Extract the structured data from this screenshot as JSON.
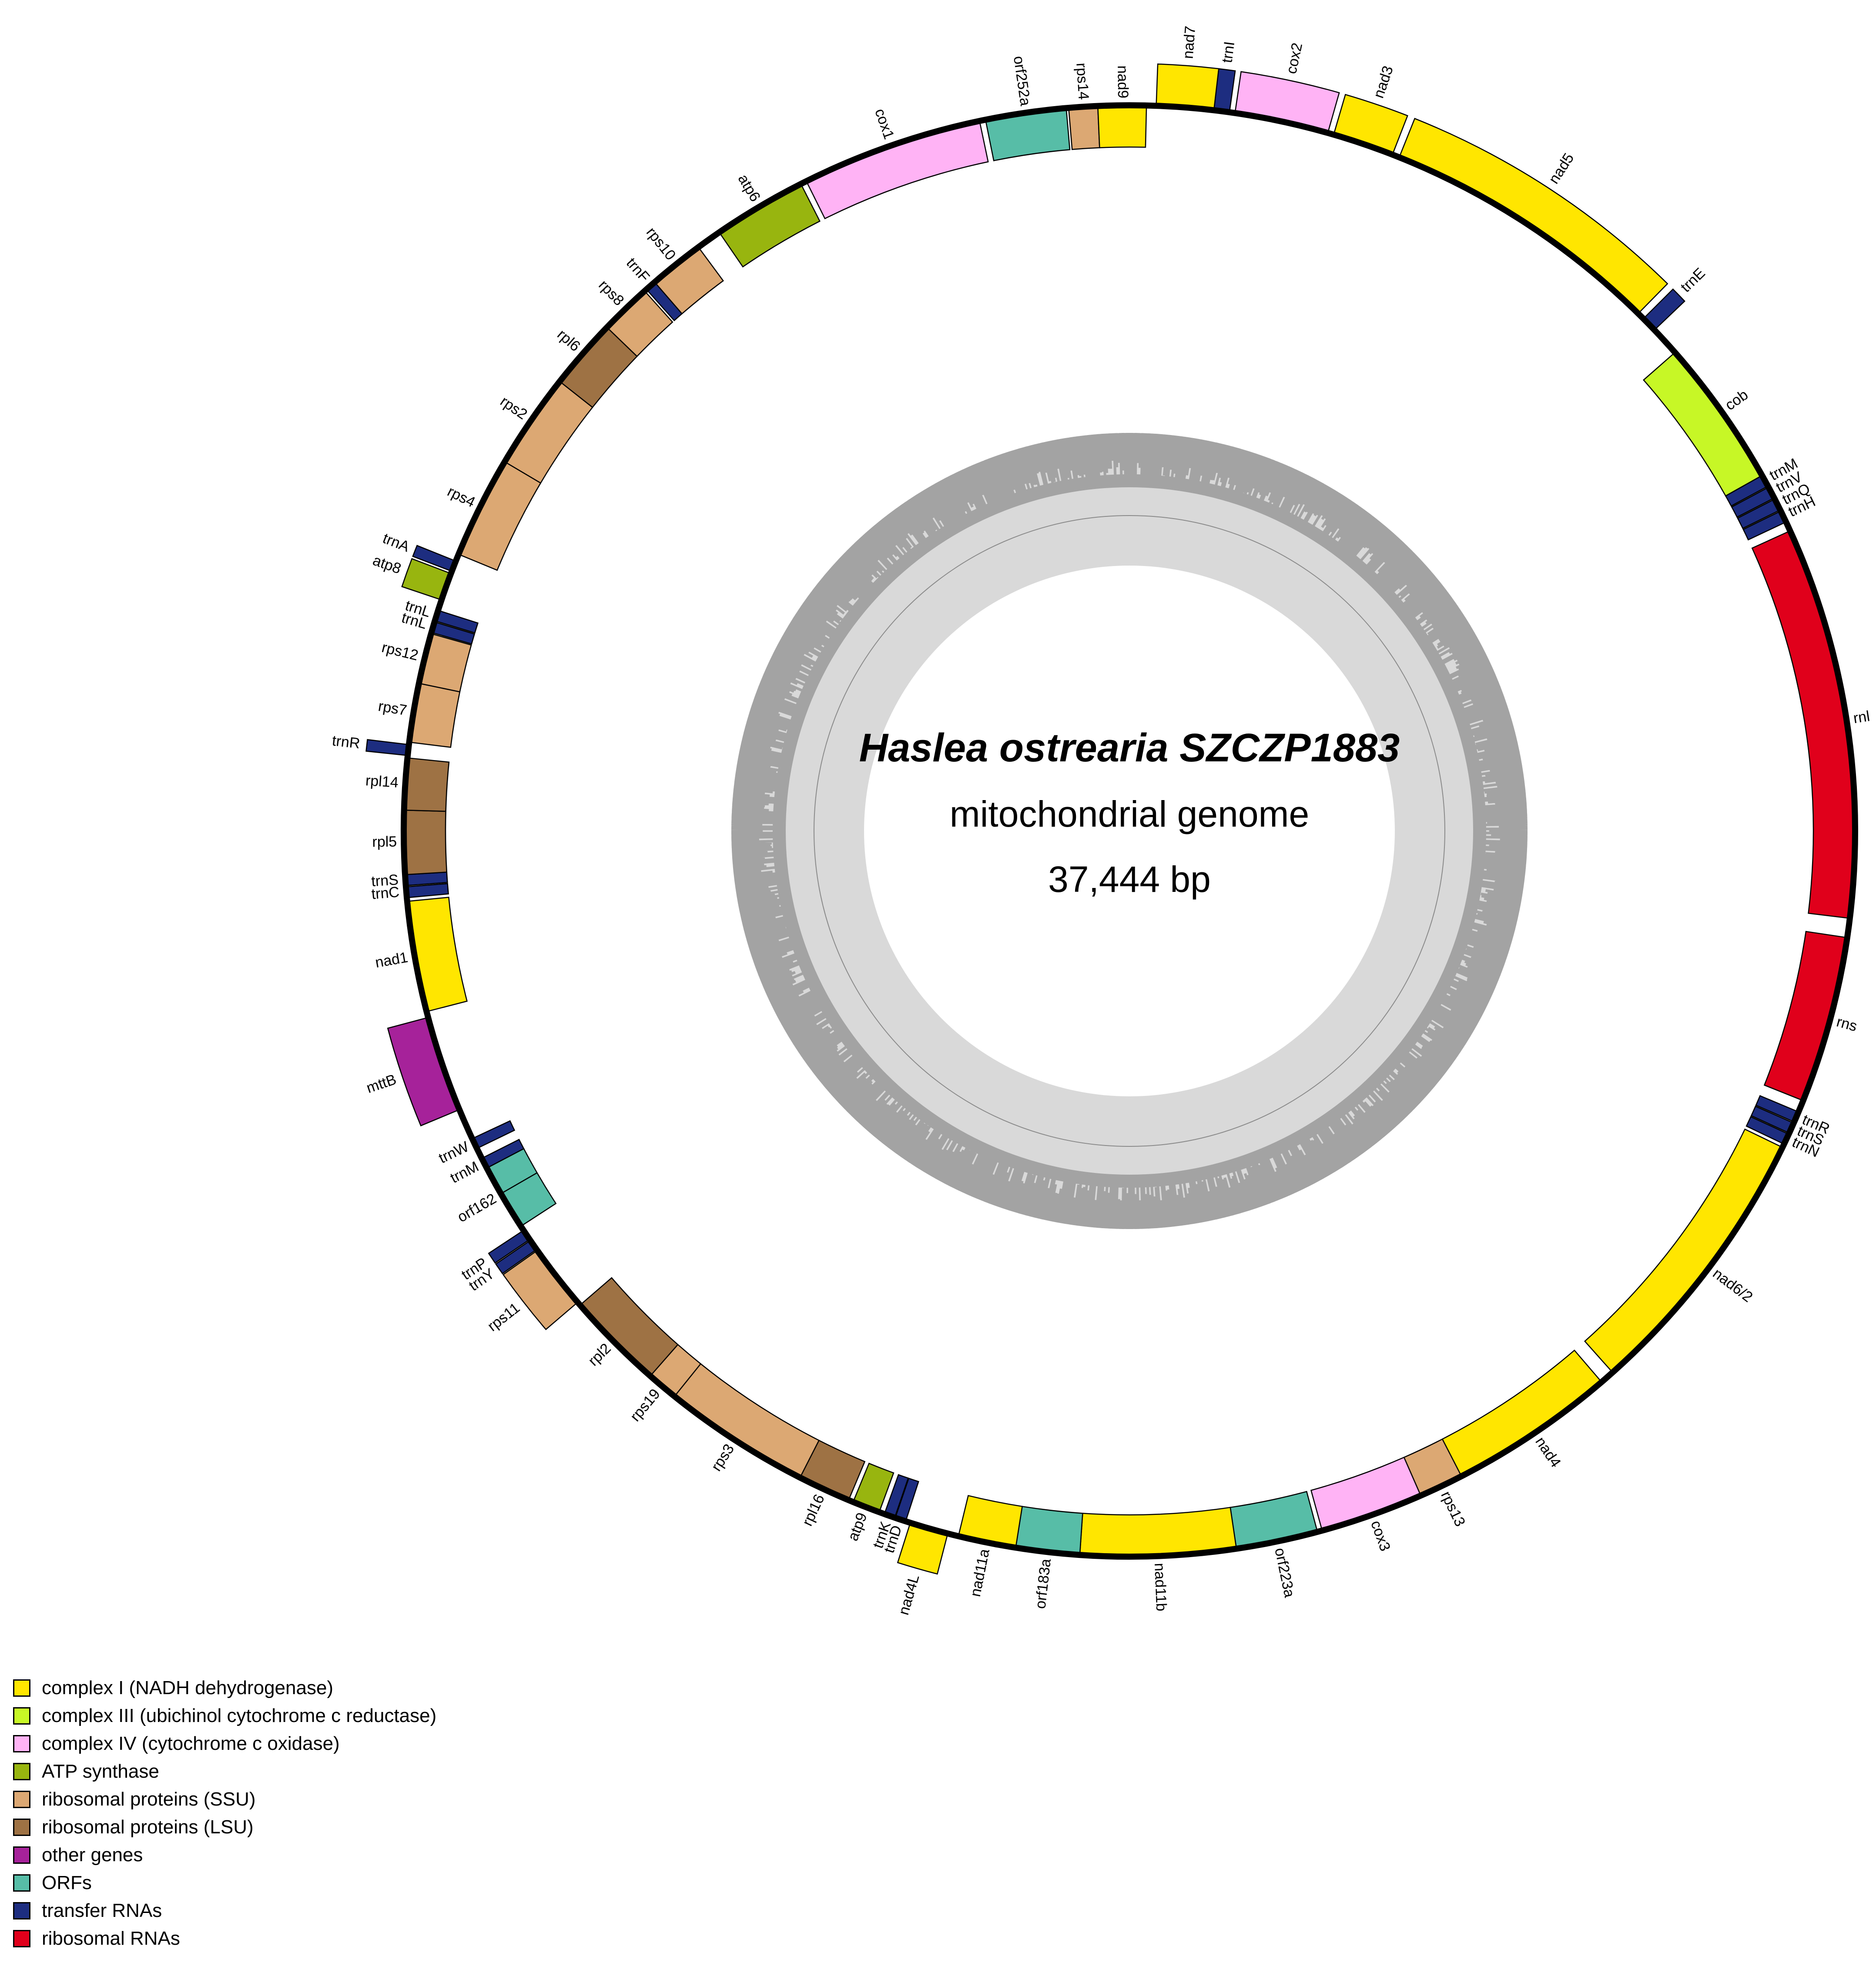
{
  "title": {
    "species": "Haslea ostrearia SZCZP1883",
    "subtitle": "mitochondrial genome",
    "size": "37,444 bp"
  },
  "colors": {
    "complex1": "#ffe600",
    "complex3": "#c7f726",
    "complex4": "#ffb3f5",
    "atp": "#98b50f",
    "ssu": "#dca873",
    "lsu": "#9e7244",
    "other": "#a6229a",
    "orf": "#57bda7",
    "trna": "#1d2d80",
    "rrna": "#e0001b",
    "gc_dark": "#a3a3a3",
    "gc_light": "#d9d9d9"
  },
  "legend": [
    {
      "label": "complex I (NADH dehydrogenase)",
      "category": "complex1"
    },
    {
      "label": "complex III (ubichinol cytochrome c reductase)",
      "category": "complex3"
    },
    {
      "label": "complex IV (cytochrome c oxidase)",
      "category": "complex4"
    },
    {
      "label": "ATP synthase",
      "category": "atp"
    },
    {
      "label": "ribosomal proteins (SSU)",
      "category": "ssu"
    },
    {
      "label": "ribosomal proteins (LSU)",
      "category": "lsu"
    },
    {
      "label": "other genes",
      "category": "other"
    },
    {
      "label": "ORFs",
      "category": "orf"
    },
    {
      "label": "transfer RNAs",
      "category": "trna"
    },
    {
      "label": "ribosomal RNAs",
      "category": "rrna"
    }
  ],
  "genes": [
    {
      "name": "trnI",
      "start": 13175,
      "end": 13304,
      "strand": "outer",
      "category": "trna"
    },
    {
      "name": "cox2",
      "start": 13350,
      "end": 14130,
      "strand": "outer",
      "category": "complex4"
    },
    {
      "name": "nad3",
      "start": 14180,
      "end": 14690,
      "strand": "outer",
      "category": "complex1"
    },
    {
      "name": "nad5",
      "start": 14750,
      "end": 17110,
      "strand": "outer",
      "category": "complex1"
    },
    {
      "name": "trnE",
      "start": 17170,
      "end": 17300,
      "strand": "outer",
      "category": "trna"
    },
    {
      "name": "cob",
      "start": 17550,
      "end": 18790,
      "strand": "inner",
      "category": "complex3"
    },
    {
      "name": "trnM",
      "start": 18790,
      "end": 18890,
      "strand": "inner",
      "category": "trna"
    },
    {
      "name": "trnV",
      "start": 18900,
      "end": 19000,
      "strand": "inner",
      "category": "trna"
    },
    {
      "name": "trnQ",
      "start": 19010,
      "end": 19110,
      "strand": "inner",
      "category": "trna"
    },
    {
      "name": "trnH",
      "start": 19120,
      "end": 19220,
      "strand": "inner",
      "category": "trna"
    },
    {
      "name": "rnl",
      "start": 19300,
      "end": 22560,
      "strand": "inner",
      "category": "rrna"
    },
    {
      "name": "rns",
      "start": 22720,
      "end": 24110,
      "strand": "inner",
      "category": "rrna"
    },
    {
      "name": "trnR",
      "start": 24210,
      "end": 24300,
      "strand": "inner",
      "category": "trna"
    },
    {
      "name": "trnS",
      "start": 24310,
      "end": 24400,
      "strand": "inner",
      "category": "trna"
    },
    {
      "name": "trnN",
      "start": 24410,
      "end": 24500,
      "strand": "inner",
      "category": "trna"
    },
    {
      "name": "nad6/2",
      "start": 24530,
      "end": 26860,
      "strand": "inner",
      "category": "complex1"
    },
    {
      "name": "nad4",
      "start": 26980,
      "end": 28370,
      "strand": "inner",
      "category": "complex1"
    },
    {
      "name": "rps13",
      "start": 28370,
      "end": 28740,
      "strand": "inner",
      "category": "ssu"
    },
    {
      "name": "cox3",
      "start": 28740,
      "end": 29600,
      "strand": "inner",
      "category": "complex4"
    },
    {
      "name": "orf223a",
      "start": 29640,
      "end": 30320,
      "strand": "inner",
      "category": "orf"
    },
    {
      "name": "nad11b",
      "start": 30320,
      "end": 31610,
      "strand": "inner",
      "category": "complex1"
    },
    {
      "name": "orf183a",
      "start": 31610,
      "end": 32140,
      "strand": "inner",
      "category": "orf"
    },
    {
      "name": "nad11a",
      "start": 32140,
      "end": 32620,
      "strand": "inner",
      "category": "complex1"
    },
    {
      "name": "nad4L",
      "start": 32710,
      "end": 33030,
      "strand": "outer",
      "category": "complex1"
    },
    {
      "name": "trnD",
      "start": 33070,
      "end": 33160,
      "strand": "inner",
      "category": "trna"
    },
    {
      "name": "trnK",
      "start": 33165,
      "end": 33255,
      "strand": "inner",
      "category": "trna"
    },
    {
      "name": "atp9",
      "start": 33300,
      "end": 33530,
      "strand": "inner",
      "category": "atp"
    },
    {
      "name": "rpl16",
      "start": 33570,
      "end": 34010,
      "strand": "inner",
      "category": "lsu"
    },
    {
      "name": "rps3",
      "start": 34010,
      "end": 35240,
      "strand": "inner",
      "category": "ssu"
    },
    {
      "name": "rps19",
      "start": 35240,
      "end": 35500,
      "strand": "inner",
      "category": "ssu"
    },
    {
      "name": "rpl2",
      "start": 35500,
      "end": 36320,
      "strand": "inner",
      "category": "lsu"
    },
    {
      "name": "rps11",
      "start": 36350,
      "end": 36890,
      "strand": "outer",
      "category": "ssu"
    },
    {
      "name": "trnY",
      "start": 36900,
      "end": 36990,
      "strand": "outer",
      "category": "trna"
    },
    {
      "name": "trnP",
      "start": 37000,
      "end": 37090,
      "strand": "outer",
      "category": "trna"
    },
    {
      "name": "orf162",
      "start": 37130,
      "end": 37444,
      "strand": "inner",
      "category": "orf"
    },
    {
      "name": "orf162",
      "start": 0,
      "end": 240,
      "strand": "inner",
      "category": "orf"
    },
    {
      "name": "trnM",
      "start": 240,
      "end": 330,
      "strand": "inner",
      "category": "trna"
    },
    {
      "name": "trnW",
      "start": 420,
      "end": 510,
      "strand": "inner",
      "category": "trna"
    },
    {
      "name": "mttB",
      "start": 770,
      "end": 1570,
      "strand": "outer",
      "category": "other"
    },
    {
      "name": "nad1",
      "start": 1620,
      "end": 2540,
      "strand": "inner",
      "category": "complex1"
    },
    {
      "name": "trnC",
      "start": 2570,
      "end": 2660,
      "strand": "inner",
      "category": "trna"
    },
    {
      "name": "trnS",
      "start": 2670,
      "end": 2760,
      "strand": "inner",
      "category": "trna"
    },
    {
      "name": "rpl5",
      "start": 2760,
      "end": 3290,
      "strand": "inner",
      "category": "lsu"
    },
    {
      "name": "rpl14",
      "start": 3290,
      "end": 3720,
      "strand": "inner",
      "category": "lsu"
    },
    {
      "name": "trnR",
      "start": 3740,
      "end": 3830,
      "strand": "outer",
      "category": "trna"
    },
    {
      "name": "rps7",
      "start": 3850,
      "end": 4340,
      "strand": "inner",
      "category": "ssu"
    },
    {
      "name": "rps12",
      "start": 4340,
      "end": 4760,
      "strand": "inner",
      "category": "ssu"
    },
    {
      "name": "trnL",
      "start": 4770,
      "end": 4860,
      "strand": "inner",
      "category": "trna"
    },
    {
      "name": "trnL",
      "start": 4870,
      "end": 4960,
      "strand": "inner",
      "category": "trna"
    },
    {
      "name": "atp8",
      "start": 5050,
      "end": 5280,
      "strand": "outer",
      "category": "atp"
    },
    {
      "name": "trnA",
      "start": 5300,
      "end": 5390,
      "strand": "outer",
      "category": "trna"
    },
    {
      "name": "rps4",
      "start": 5450,
      "end": 6300,
      "strand": "inner",
      "category": "ssu"
    },
    {
      "name": "rps2",
      "start": 6300,
      "end": 7100,
      "strand": "inner",
      "category": "ssu"
    },
    {
      "name": "rpl6",
      "start": 7100,
      "end": 7690,
      "strand": "inner",
      "category": "lsu"
    },
    {
      "name": "rps8",
      "start": 7690,
      "end": 8120,
      "strand": "inner",
      "category": "ssu"
    },
    {
      "name": "trnF",
      "start": 8140,
      "end": 8230,
      "strand": "inner",
      "category": "trna"
    },
    {
      "name": "rps10",
      "start": 8230,
      "end": 8690,
      "strand": "inner",
      "category": "ssu"
    },
    {
      "name": "atp6",
      "start": 8900,
      "end": 9680,
      "strand": "inner",
      "category": "atp"
    },
    {
      "name": "cox1",
      "start": 9730,
      "end": 11240,
      "strand": "inner",
      "category": "complex4"
    },
    {
      "name": "orf252a",
      "start": 11290,
      "end": 11960,
      "strand": "inner",
      "category": "orf"
    },
    {
      "name": "rps14",
      "start": 11980,
      "end": 12220,
      "strand": "inner",
      "category": "ssu"
    },
    {
      "name": "nad9",
      "start": 12220,
      "end": 12620,
      "strand": "inner",
      "category": "complex1"
    },
    {
      "name": "nad7",
      "start": 12700,
      "end": 13175,
      "strand": "outer",
      "category": "complex1"
    }
  ]
}
